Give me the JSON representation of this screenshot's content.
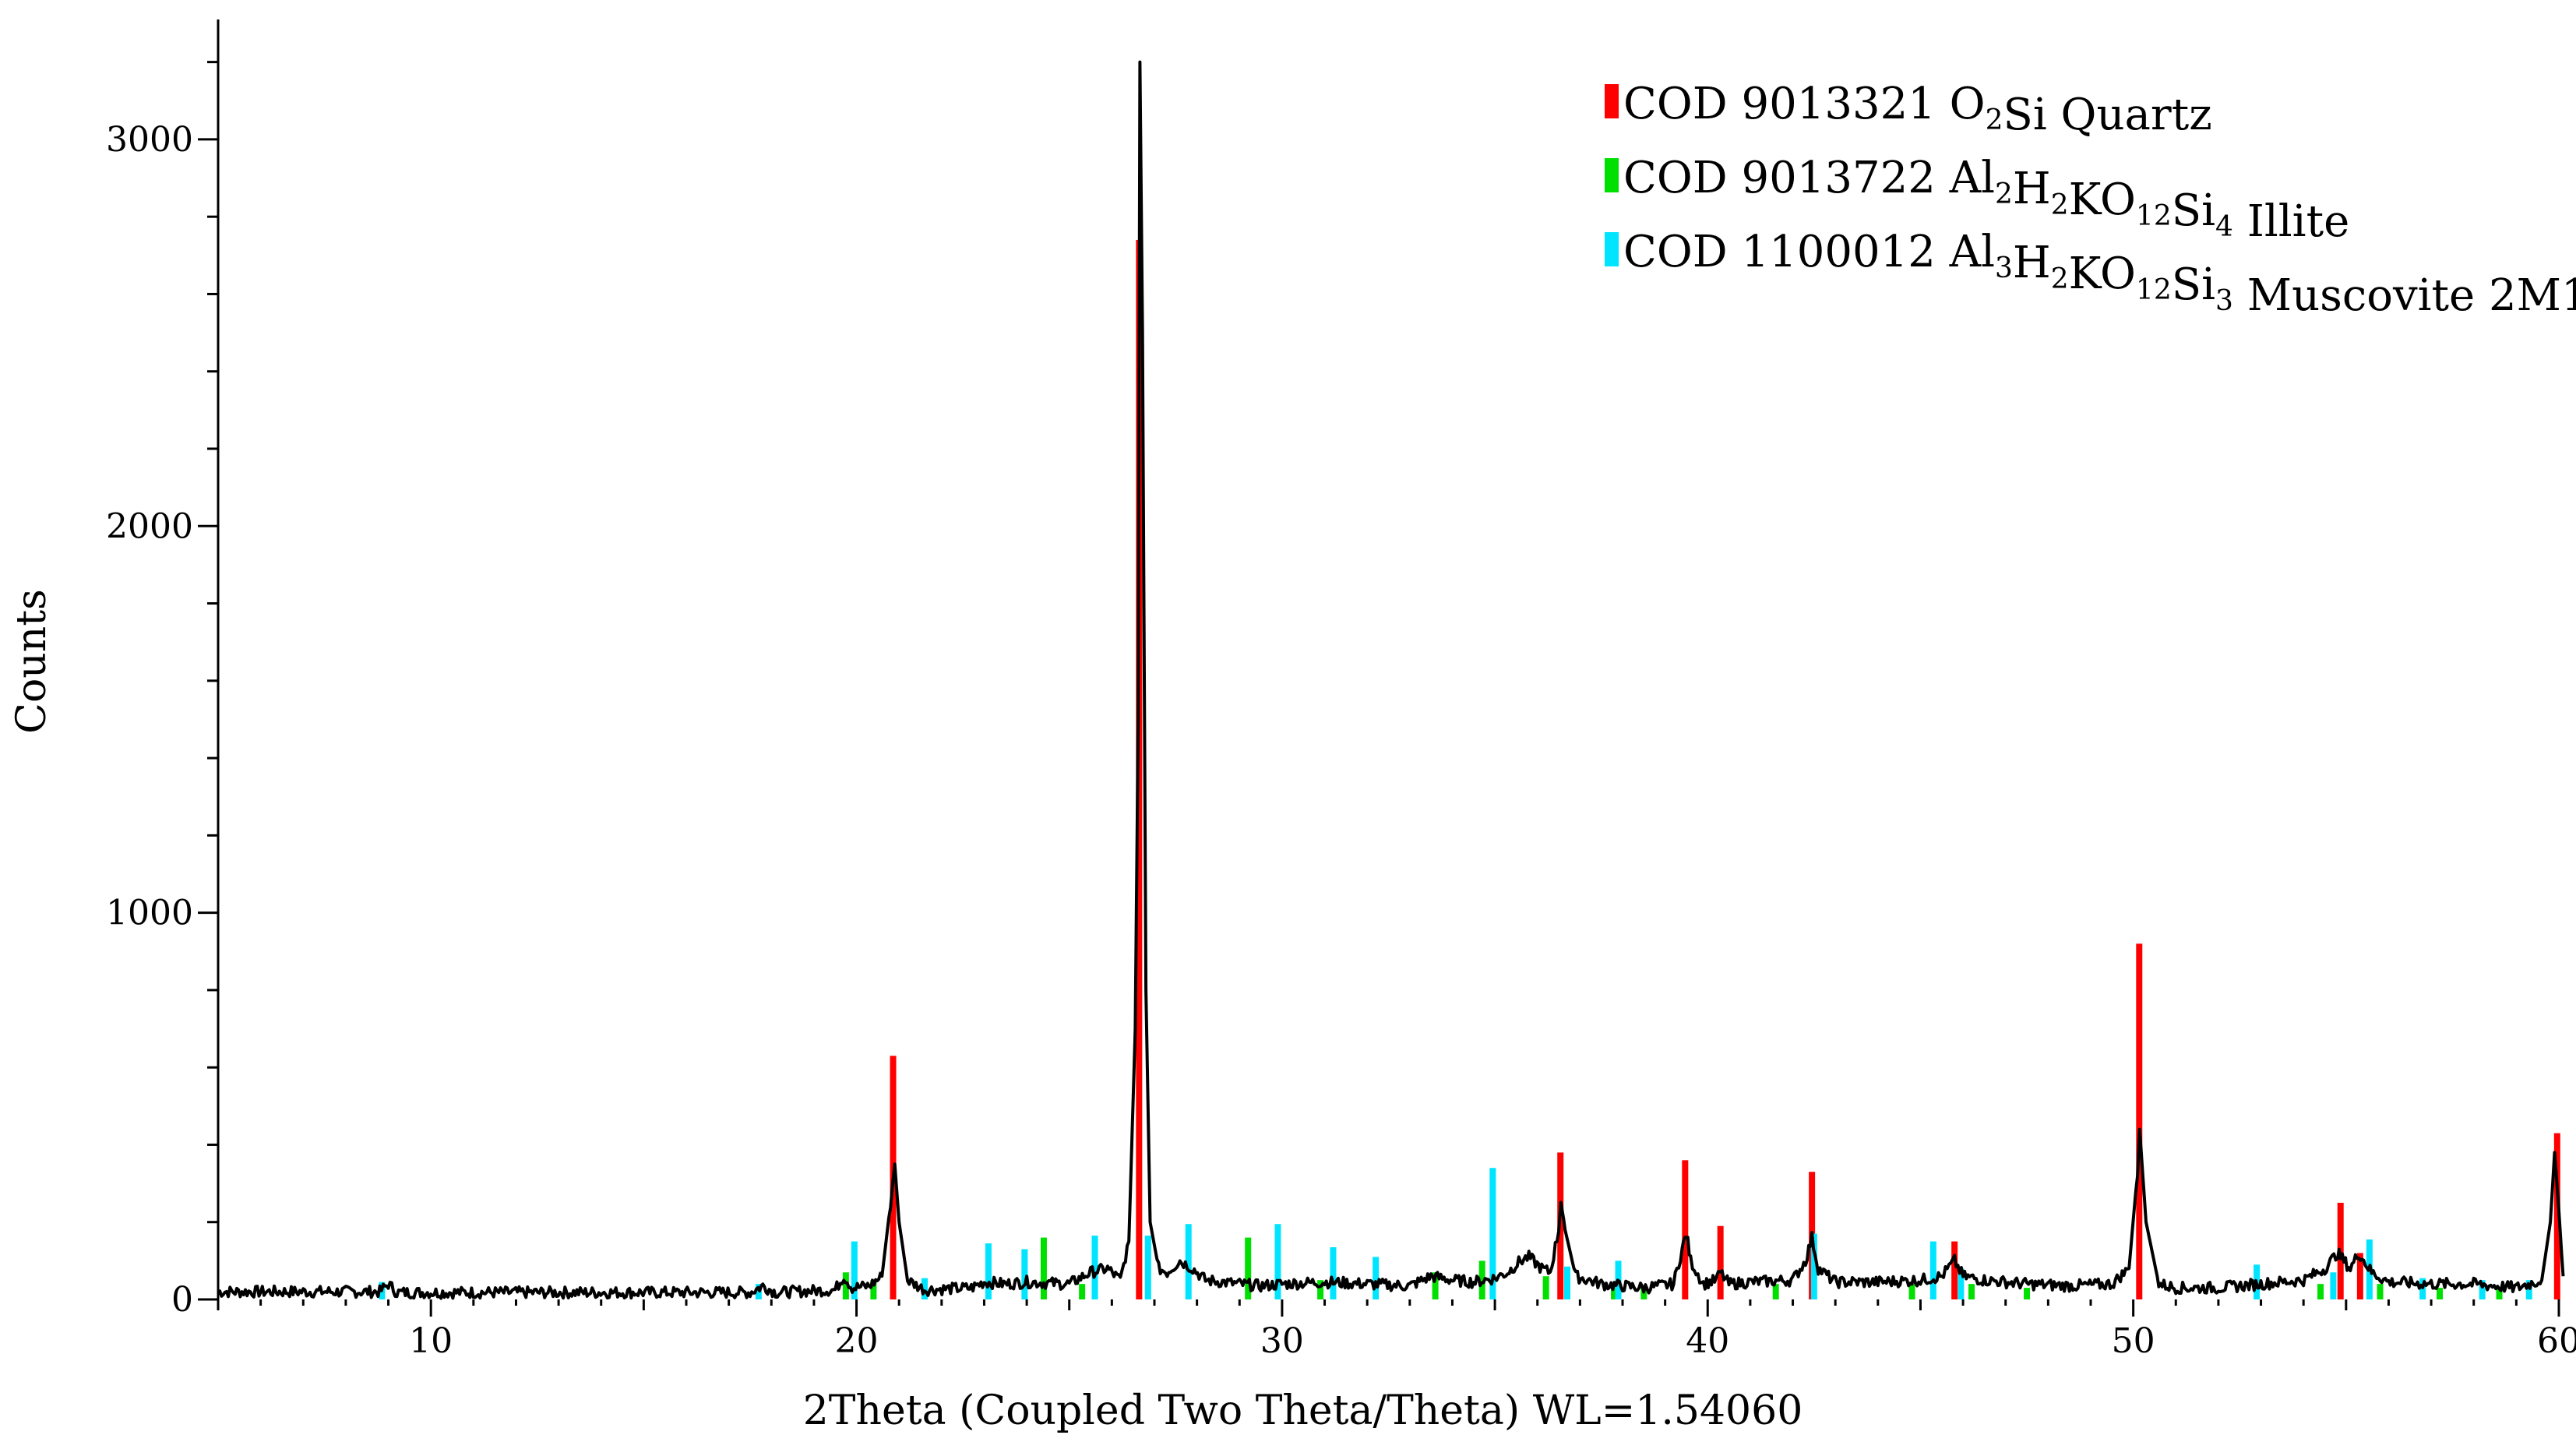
{
  "chart_data": {
    "type": "line",
    "xlabel": "2Theta (Coupled Two Theta/Theta) WL=1.54060",
    "ylabel": "Counts",
    "xlim": [
      5,
      60
    ],
    "ylim": [
      0,
      3300
    ],
    "x_ticks": [
      10,
      20,
      30,
      40,
      50,
      60
    ],
    "y_ticks": [
      0,
      1000,
      2000,
      3000
    ],
    "legend_position": "top-right",
    "pattern": {
      "color": "#000000",
      "points": [
        [
          5,
          20
        ],
        [
          8.8,
          20
        ],
        [
          9.0,
          40
        ],
        [
          9.2,
          18
        ],
        [
          17.5,
          18
        ],
        [
          17.8,
          35
        ],
        [
          18.1,
          18
        ],
        [
          19.5,
          25
        ],
        [
          19.7,
          60
        ],
        [
          19.9,
          30
        ],
        [
          20.3,
          35
        ],
        [
          20.6,
          60
        ],
        [
          20.8,
          250
        ],
        [
          20.9,
          350
        ],
        [
          21.0,
          200
        ],
        [
          21.2,
          50
        ],
        [
          21.6,
          25
        ],
        [
          22.7,
          30
        ],
        [
          23.0,
          45
        ],
        [
          23.5,
          40
        ],
        [
          24.0,
          45
        ],
        [
          25.0,
          40
        ],
        [
          25.5,
          70
        ],
        [
          25.9,
          80
        ],
        [
          26.2,
          50
        ],
        [
          26.4,
          150
        ],
        [
          26.55,
          700
        ],
        [
          26.62,
          1500
        ],
        [
          26.66,
          3200
        ],
        [
          26.72,
          2500
        ],
        [
          26.8,
          800
        ],
        [
          26.9,
          200
        ],
        [
          27.1,
          80
        ],
        [
          27.3,
          70
        ],
        [
          27.6,
          100
        ],
        [
          27.9,
          80
        ],
        [
          28.2,
          50
        ],
        [
          29.0,
          40
        ],
        [
          29.5,
          35
        ],
        [
          30.0,
          40
        ],
        [
          31.0,
          45
        ],
        [
          32.0,
          40
        ],
        [
          33.0,
          35
        ],
        [
          33.5,
          60
        ],
        [
          34.0,
          50
        ],
        [
          34.5,
          45
        ],
        [
          35.0,
          55
        ],
        [
          35.3,
          70
        ],
        [
          35.6,
          100
        ],
        [
          35.8,
          110
        ],
        [
          36.1,
          80
        ],
        [
          36.3,
          70
        ],
        [
          36.5,
          180
        ],
        [
          36.55,
          260
        ],
        [
          36.65,
          180
        ],
        [
          36.9,
          60
        ],
        [
          37.5,
          40
        ],
        [
          38.0,
          35
        ],
        [
          38.5,
          30
        ],
        [
          39.2,
          40
        ],
        [
          39.4,
          130
        ],
        [
          39.5,
          170
        ],
        [
          39.6,
          100
        ],
        [
          39.9,
          40
        ],
        [
          40.2,
          50
        ],
        [
          40.3,
          70
        ],
        [
          40.5,
          40
        ],
        [
          41.0,
          45
        ],
        [
          42.0,
          50
        ],
        [
          42.3,
          100
        ],
        [
          42.45,
          160
        ],
        [
          42.6,
          80
        ],
        [
          43.0,
          45
        ],
        [
          44.0,
          45
        ],
        [
          45.0,
          50
        ],
        [
          45.5,
          60
        ],
        [
          45.8,
          100
        ],
        [
          46.0,
          60
        ],
        [
          46.5,
          50
        ],
        [
          47.5,
          40
        ],
        [
          48.5,
          35
        ],
        [
          49.5,
          40
        ],
        [
          49.9,
          80
        ],
        [
          50.1,
          330
        ],
        [
          50.15,
          440
        ],
        [
          50.3,
          200
        ],
        [
          50.6,
          40
        ],
        [
          51.0,
          30
        ],
        [
          52.0,
          30
        ],
        [
          53.0,
          40
        ],
        [
          54.0,
          50
        ],
        [
          54.5,
          80
        ],
        [
          54.8,
          120
        ],
        [
          55.1,
          80
        ],
        [
          55.3,
          120
        ],
        [
          55.6,
          70
        ],
        [
          56.0,
          45
        ],
        [
          57.0,
          40
        ],
        [
          58.0,
          40
        ],
        [
          59.0,
          30
        ],
        [
          59.6,
          50
        ],
        [
          59.8,
          200
        ],
        [
          59.9,
          380
        ],
        [
          60.0,
          230
        ],
        [
          60.1,
          60
        ]
      ]
    },
    "series": [
      {
        "name_parts": [
          {
            "text": "COD 9013321 O",
            "sub": false
          },
          {
            "text": "2",
            "sub": true
          },
          {
            "text": "Si Quartz",
            "sub": false
          }
        ],
        "color": "#ff0000",
        "peaks": [
          [
            20.86,
            630
          ],
          [
            26.64,
            2740
          ],
          [
            36.54,
            380
          ],
          [
            39.47,
            360
          ],
          [
            40.3,
            190
          ],
          [
            42.45,
            330
          ],
          [
            45.8,
            150
          ],
          [
            50.14,
            920
          ],
          [
            54.87,
            250
          ],
          [
            55.33,
            120
          ],
          [
            59.96,
            430
          ]
        ]
      },
      {
        "name_parts": [
          {
            "text": "COD 9013722 Al",
            "sub": false
          },
          {
            "text": "2",
            "sub": true
          },
          {
            "text": "H",
            "sub": false
          },
          {
            "text": "2",
            "sub": true
          },
          {
            "text": "KO",
            "sub": false
          },
          {
            "text": "12",
            "sub": true
          },
          {
            "text": "Si",
            "sub": false
          },
          {
            "text": "4",
            "sub": true
          },
          {
            "text": " Illite",
            "sub": false
          }
        ],
        "color": "#00e000",
        "peaks": [
          [
            19.75,
            70
          ],
          [
            20.4,
            50
          ],
          [
            24.4,
            160
          ],
          [
            25.3,
            40
          ],
          [
            29.2,
            160
          ],
          [
            30.9,
            50
          ],
          [
            33.6,
            70
          ],
          [
            34.7,
            100
          ],
          [
            36.2,
            60
          ],
          [
            37.8,
            40
          ],
          [
            38.5,
            30
          ],
          [
            41.6,
            40
          ],
          [
            44.8,
            40
          ],
          [
            46.2,
            40
          ],
          [
            47.5,
            30
          ],
          [
            54.4,
            40
          ],
          [
            55.8,
            40
          ],
          [
            57.2,
            30
          ],
          [
            58.6,
            30
          ]
        ]
      },
      {
        "name_parts": [
          {
            "text": "COD 1100012 Al",
            "sub": false
          },
          {
            "text": "3",
            "sub": true
          },
          {
            "text": "H",
            "sub": false
          },
          {
            "text": "2",
            "sub": true
          },
          {
            "text": "KO",
            "sub": false
          },
          {
            "text": "12",
            "sub": true
          },
          {
            "text": "Si",
            "sub": false
          },
          {
            "text": "3",
            "sub": true
          },
          {
            "text": " Muscovite 2M1",
            "sub": false
          }
        ],
        "color": "#00e5ff",
        "peaks": [
          [
            8.85,
            45
          ],
          [
            17.7,
            40
          ],
          [
            19.95,
            150
          ],
          [
            21.6,
            55
          ],
          [
            23.1,
            145
          ],
          [
            23.95,
            130
          ],
          [
            25.6,
            165
          ],
          [
            26.85,
            165
          ],
          [
            27.8,
            195
          ],
          [
            29.9,
            195
          ],
          [
            31.2,
            135
          ],
          [
            32.2,
            110
          ],
          [
            34.95,
            340
          ],
          [
            36.7,
            85
          ],
          [
            37.9,
            100
          ],
          [
            42.5,
            170
          ],
          [
            45.3,
            150
          ],
          [
            45.95,
            80
          ],
          [
            52.9,
            90
          ],
          [
            54.7,
            70
          ],
          [
            55.55,
            155
          ],
          [
            56.8,
            55
          ],
          [
            58.2,
            50
          ],
          [
            59.3,
            50
          ]
        ]
      }
    ]
  }
}
